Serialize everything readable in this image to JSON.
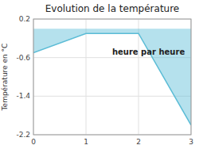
{
  "chart_data": {
    "type": "area",
    "title": "Evolution de la température",
    "ylabel": "Température en °C",
    "annotation": "heure par heure",
    "x": [
      0,
      1,
      2,
      3
    ],
    "values": [
      -0.5,
      -0.1,
      -0.1,
      -2.0
    ],
    "color": "#5bbcd6",
    "xlim": [
      0,
      3
    ],
    "ylim": [
      -2.2,
      0.2
    ],
    "xticks": [
      0,
      1,
      2,
      3
    ],
    "yticks": [
      0.2,
      -0.6,
      -1.4,
      -2.2
    ],
    "grid": true
  }
}
